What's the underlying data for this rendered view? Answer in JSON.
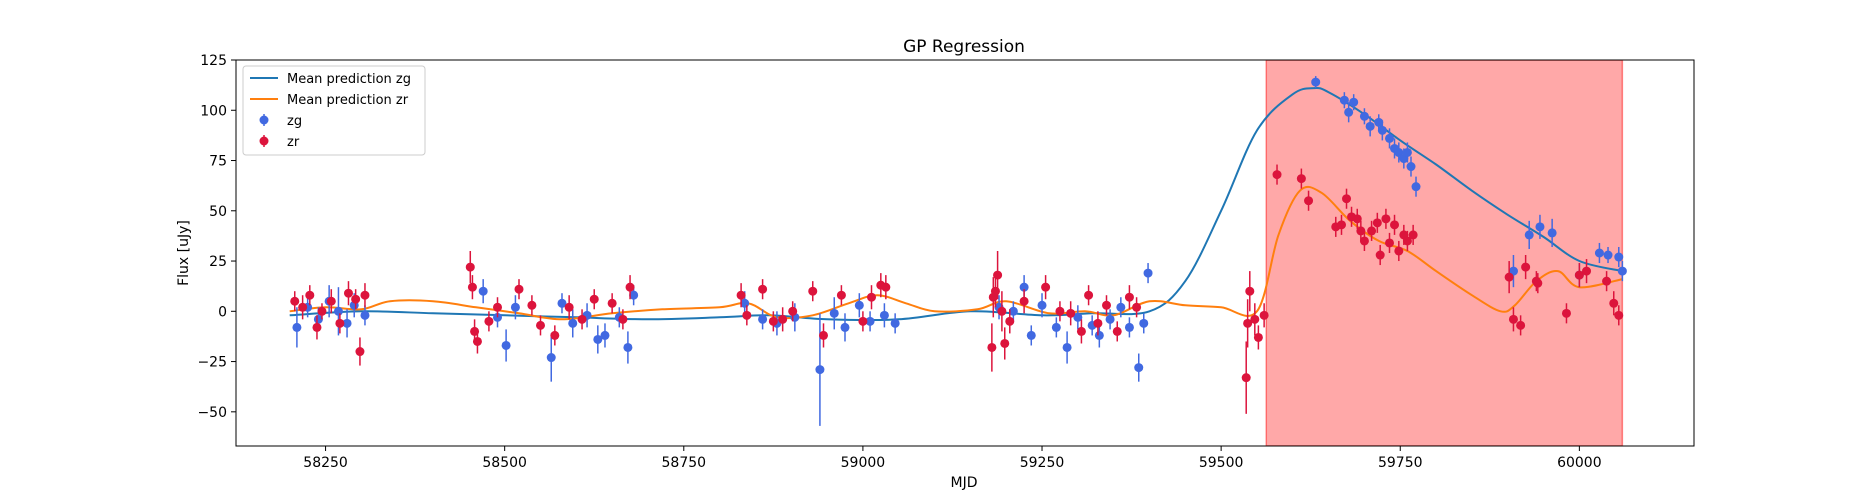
{
  "chart_data": {
    "type": "scatter",
    "title": "GP Regression",
    "xlabel": "MJD",
    "ylabel": "Flux [uJy]",
    "xlim": [
      58125,
      60160
    ],
    "ylim": [
      -67,
      125
    ],
    "xticks": [
      58250,
      58500,
      58750,
      59000,
      59250,
      59500,
      59750,
      60000
    ],
    "yticks": [
      -50,
      -25,
      0,
      25,
      50,
      75,
      100,
      125
    ],
    "grid": false,
    "legend_position": "top-left",
    "shaded_region": {
      "x0": 59563,
      "x1": 60060,
      "color": "#ff0000",
      "opacity": 0.34
    },
    "colors": {
      "zg_line": "#1f77b4",
      "zr_line": "#ff7f0e",
      "zg_points": "#4169e1",
      "zr_points": "#dc143c"
    },
    "legend": [
      {
        "label": "Mean prediction zg",
        "kind": "line",
        "series": "zg_line"
      },
      {
        "label": "Mean prediction zr",
        "kind": "line",
        "series": "zr_line"
      },
      {
        "label": "zg",
        "kind": "errorbar",
        "series": "zg_points"
      },
      {
        "label": "zr",
        "kind": "errorbar",
        "series": "zr_points"
      }
    ],
    "series": [
      {
        "name": "Mean prediction zg",
        "kind": "line",
        "color": "#1f77b4",
        "x": [
          58200,
          58300,
          58400,
          58500,
          58600,
          58700,
          58800,
          58870,
          58950,
          59050,
          59150,
          59250,
          59320,
          59400,
          59450,
          59500,
          59550,
          59600,
          59630,
          59650,
          59700,
          59750,
          59800,
          59850,
          59900,
          59950,
          60000,
          60060
        ],
        "y": [
          -2,
          0,
          -1,
          -2,
          -3,
          -4,
          -3,
          -2,
          -4,
          -4,
          0,
          -2,
          -1,
          0,
          15,
          50,
          90,
          108,
          111,
          109,
          98,
          85,
          73,
          60,
          48,
          37,
          25,
          20
        ]
      },
      {
        "name": "Mean prediction zr",
        "kind": "line",
        "color": "#ff7f0e",
        "x": [
          58200,
          58250,
          58300,
          58340,
          58400,
          58460,
          58520,
          58580,
          58650,
          58720,
          58800,
          58840,
          58880,
          58930,
          58980,
          59020,
          59060,
          59100,
          59160,
          59200,
          59260,
          59310,
          59350,
          59400,
          59450,
          59500,
          59550,
          59580,
          59610,
          59640,
          59680,
          59720,
          59760,
          59800,
          59850,
          59890,
          59910,
          59940,
          59970,
          60000,
          60060
        ],
        "y": [
          0,
          2,
          1,
          5,
          5,
          2,
          -1,
          -4,
          -1,
          1,
          2,
          4,
          -3,
          -2,
          4,
          8,
          4,
          0,
          1,
          5,
          -1,
          0,
          -2,
          5,
          3,
          2,
          0,
          38,
          60,
          59,
          45,
          35,
          30,
          20,
          8,
          0,
          3,
          15,
          20,
          12,
          16
        ]
      },
      {
        "name": "zg",
        "kind": "errorbar",
        "color": "#4169e1",
        "points": [
          [
            58210,
            -8,
            10
          ],
          [
            58225,
            2,
            5
          ],
          [
            58240,
            -4,
            6
          ],
          [
            58255,
            5,
            8
          ],
          [
            58268,
            0,
            12
          ],
          [
            58280,
            -6,
            7
          ],
          [
            58290,
            3,
            6
          ],
          [
            58305,
            -2,
            5
          ],
          [
            58470,
            10,
            6
          ],
          [
            58490,
            -3,
            5
          ],
          [
            58502,
            -17,
            8
          ],
          [
            58515,
            2,
            6
          ],
          [
            58565,
            -23,
            12
          ],
          [
            58580,
            4,
            5
          ],
          [
            58595,
            -6,
            7
          ],
          [
            58615,
            -2,
            6
          ],
          [
            58630,
            -14,
            7
          ],
          [
            58640,
            -12,
            6
          ],
          [
            58660,
            -3,
            5
          ],
          [
            58672,
            -18,
            8
          ],
          [
            58680,
            8,
            5
          ],
          [
            58835,
            4,
            6
          ],
          [
            58860,
            -4,
            5
          ],
          [
            58880,
            -6,
            6
          ],
          [
            58905,
            -3,
            7
          ],
          [
            58940,
            -29,
            28
          ],
          [
            58960,
            -1,
            8
          ],
          [
            58975,
            -8,
            7
          ],
          [
            58995,
            3,
            6
          ],
          [
            59010,
            -5,
            5
          ],
          [
            59030,
            -2,
            6
          ],
          [
            59045,
            -6,
            5
          ],
          [
            59190,
            2,
            6
          ],
          [
            59210,
            0,
            5
          ],
          [
            59225,
            12,
            6
          ],
          [
            59235,
            -12,
            5
          ],
          [
            59250,
            3,
            6
          ],
          [
            59270,
            -8,
            5
          ],
          [
            59285,
            -18,
            8
          ],
          [
            59300,
            -3,
            6
          ],
          [
            59320,
            -7,
            5
          ],
          [
            59330,
            -12,
            6
          ],
          [
            59345,
            -4,
            5
          ],
          [
            59360,
            2,
            5
          ],
          [
            59372,
            -8,
            5
          ],
          [
            59385,
            -28,
            7
          ],
          [
            59392,
            -6,
            5
          ],
          [
            59398,
            19,
            5
          ],
          [
            59632,
            114,
            3
          ],
          [
            59672,
            105,
            4
          ],
          [
            59678,
            99,
            5
          ],
          [
            59685,
            104,
            4
          ],
          [
            59700,
            97,
            4
          ],
          [
            59708,
            92,
            5
          ],
          [
            59720,
            94,
            4
          ],
          [
            59725,
            90,
            5
          ],
          [
            59735,
            86,
            5
          ],
          [
            59742,
            81,
            5
          ],
          [
            59748,
            79,
            5
          ],
          [
            59755,
            76,
            5
          ],
          [
            59760,
            79,
            5
          ],
          [
            59765,
            72,
            5
          ],
          [
            59772,
            62,
            5
          ],
          [
            59908,
            20,
            8
          ],
          [
            59930,
            38,
            7
          ],
          [
            59945,
            42,
            6
          ],
          [
            59962,
            39,
            7
          ],
          [
            60000,
            18,
            6
          ],
          [
            60028,
            29,
            5
          ],
          [
            60040,
            28,
            4
          ],
          [
            60055,
            27,
            5
          ],
          [
            60060,
            20,
            5
          ]
        ]
      },
      {
        "name": "zr",
        "kind": "errorbar",
        "color": "#dc143c",
        "points": [
          [
            58207,
            5,
            5
          ],
          [
            58218,
            2,
            6
          ],
          [
            58228,
            8,
            5
          ],
          [
            58238,
            -8,
            6
          ],
          [
            58245,
            0,
            4
          ],
          [
            58258,
            5,
            6
          ],
          [
            58270,
            -6,
            5
          ],
          [
            58282,
            9,
            6
          ],
          [
            58292,
            6,
            5
          ],
          [
            58298,
            -20,
            7
          ],
          [
            58305,
            8,
            6
          ],
          [
            58452,
            22,
            8
          ],
          [
            58455,
            12,
            6
          ],
          [
            58458,
            -10,
            6
          ],
          [
            58462,
            -15,
            6
          ],
          [
            58478,
            -5,
            5
          ],
          [
            58490,
            2,
            5
          ],
          [
            58520,
            11,
            5
          ],
          [
            58538,
            3,
            5
          ],
          [
            58550,
            -7,
            5
          ],
          [
            58570,
            -12,
            5
          ],
          [
            58590,
            2,
            6
          ],
          [
            58608,
            -4,
            5
          ],
          [
            58625,
            6,
            5
          ],
          [
            58650,
            4,
            5
          ],
          [
            58665,
            -4,
            5
          ],
          [
            58675,
            12,
            6
          ],
          [
            58830,
            8,
            6
          ],
          [
            58838,
            -2,
            5
          ],
          [
            58860,
            11,
            5
          ],
          [
            58875,
            -5,
            5
          ],
          [
            58888,
            -4,
            6
          ],
          [
            58902,
            0,
            5
          ],
          [
            58930,
            10,
            5
          ],
          [
            58945,
            -12,
            6
          ],
          [
            58970,
            8,
            5
          ],
          [
            59000,
            -5,
            5
          ],
          [
            59012,
            7,
            6
          ],
          [
            59025,
            13,
            6
          ],
          [
            59032,
            12,
            6
          ],
          [
            59180,
            -18,
            12
          ],
          [
            59182,
            7,
            10
          ],
          [
            59185,
            10,
            8
          ],
          [
            59188,
            18,
            12
          ],
          [
            59194,
            0,
            10
          ],
          [
            59198,
            -16,
            8
          ],
          [
            59205,
            -5,
            6
          ],
          [
            59225,
            5,
            6
          ],
          [
            59255,
            12,
            6
          ],
          [
            59275,
            0,
            5
          ],
          [
            59290,
            -1,
            6
          ],
          [
            59305,
            -10,
            6
          ],
          [
            59315,
            8,
            5
          ],
          [
            59328,
            -6,
            6
          ],
          [
            59340,
            3,
            5
          ],
          [
            59355,
            -10,
            5
          ],
          [
            59372,
            7,
            6
          ],
          [
            59382,
            2,
            5
          ],
          [
            59535,
            -33,
            18
          ],
          [
            59537,
            -6,
            12
          ],
          [
            59540,
            10,
            10
          ],
          [
            59547,
            -4,
            8
          ],
          [
            59552,
            -13,
            6
          ],
          [
            59560,
            -2,
            6
          ],
          [
            59578,
            68,
            5
          ],
          [
            59612,
            66,
            5
          ],
          [
            59622,
            55,
            5
          ],
          [
            59660,
            42,
            5
          ],
          [
            59668,
            43,
            5
          ],
          [
            59675,
            56,
            5
          ],
          [
            59682,
            47,
            5
          ],
          [
            59690,
            46,
            5
          ],
          [
            59695,
            40,
            5
          ],
          [
            59700,
            35,
            5
          ],
          [
            59710,
            40,
            5
          ],
          [
            59718,
            44,
            5
          ],
          [
            59722,
            28,
            5
          ],
          [
            59730,
            46,
            5
          ],
          [
            59735,
            34,
            5
          ],
          [
            59742,
            43,
            5
          ],
          [
            59748,
            30,
            5
          ],
          [
            59755,
            38,
            5
          ],
          [
            59760,
            35,
            5
          ],
          [
            59768,
            38,
            5
          ],
          [
            59902,
            17,
            8
          ],
          [
            59908,
            -4,
            6
          ],
          [
            59918,
            -7,
            5
          ],
          [
            59925,
            22,
            6
          ],
          [
            59940,
            15,
            5
          ],
          [
            59942,
            14,
            5
          ],
          [
            59982,
            -1,
            5
          ],
          [
            60000,
            18,
            6
          ],
          [
            60010,
            20,
            6
          ],
          [
            60038,
            15,
            5
          ],
          [
            60048,
            4,
            6
          ],
          [
            60055,
            -2,
            5
          ]
        ]
      }
    ]
  }
}
